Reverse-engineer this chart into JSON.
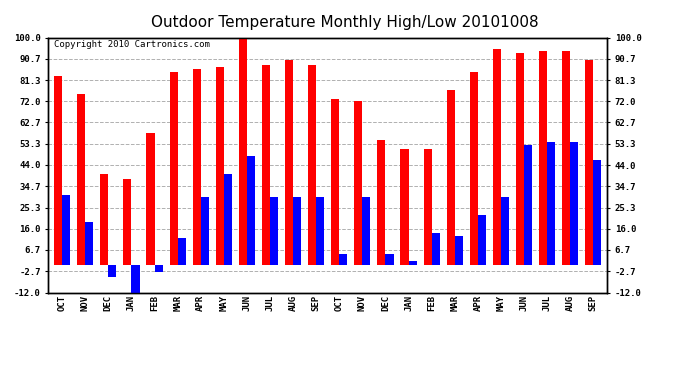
{
  "title": "Outdoor Temperature Monthly High/Low 20101008",
  "copyright": "Copyright 2010 Cartronics.com",
  "categories": [
    "OCT",
    "NOV",
    "DEC",
    "JAN",
    "FEB",
    "MAR",
    "APR",
    "MAY",
    "JUN",
    "JUL",
    "AUG",
    "SEP",
    "OCT",
    "NOV",
    "DEC",
    "JAN",
    "FEB",
    "MAR",
    "APR",
    "MAY",
    "JUN",
    "JUL",
    "AUG",
    "SEP"
  ],
  "highs": [
    83,
    75,
    40,
    38,
    58,
    85,
    86,
    87,
    100,
    88,
    90,
    88,
    73,
    72,
    55,
    51,
    51,
    77,
    85,
    95,
    93,
    94,
    94,
    90
  ],
  "lows": [
    31,
    19,
    -5,
    -12,
    -3,
    12,
    30,
    40,
    48,
    30,
    30,
    30,
    5,
    30,
    5,
    2,
    14,
    13,
    22,
    30,
    53,
    54,
    54,
    46
  ],
  "high_color": "#ff0000",
  "low_color": "#0000ff",
  "bg_color": "#ffffff",
  "grid_color": "#b0b0b0",
  "yticks": [
    100.0,
    90.7,
    81.3,
    72.0,
    62.7,
    53.3,
    44.0,
    34.7,
    25.3,
    16.0,
    6.7,
    -2.7,
    -12.0
  ],
  "ymin": -12.0,
  "ymax": 100.0,
  "bar_width": 0.35,
  "title_fontsize": 11,
  "tick_fontsize": 6.5,
  "copyright_fontsize": 6.5,
  "figwidth": 6.9,
  "figheight": 3.75,
  "dpi": 100
}
